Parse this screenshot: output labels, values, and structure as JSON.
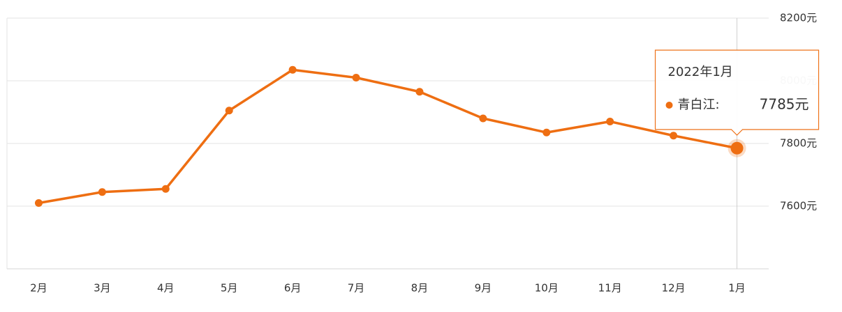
{
  "chart_data": {
    "type": "line",
    "categories": [
      "2月",
      "3月",
      "4月",
      "5月",
      "6月",
      "7月",
      "8月",
      "9月",
      "10月",
      "11月",
      "12月",
      "1月"
    ],
    "series": [
      {
        "color": "#ee6e12",
        "values": [
          7610,
          7645,
          7655,
          7905,
          8035,
          8010,
          7965,
          7880,
          7835,
          7870,
          7825,
          7785
        ],
        "value_labels": [
          null,
          null,
          null,
          null,
          null,
          null,
          null,
          null,
          null,
          null,
          null,
          "7785元"
        ]
      }
    ],
    "ylim": [
      7400,
      8200
    ],
    "yticks": [
      {
        "value": 7600,
        "label": "7600元"
      },
      {
        "value": 7800,
        "label": "7800元"
      },
      {
        "value": 8000,
        "label": "8000元"
      },
      {
        "value": 8200,
        "label": "8200元"
      }
    ],
    "grid": true,
    "tooltip": {
      "title": "2022年1月",
      "label": "青白江:"
    }
  }
}
